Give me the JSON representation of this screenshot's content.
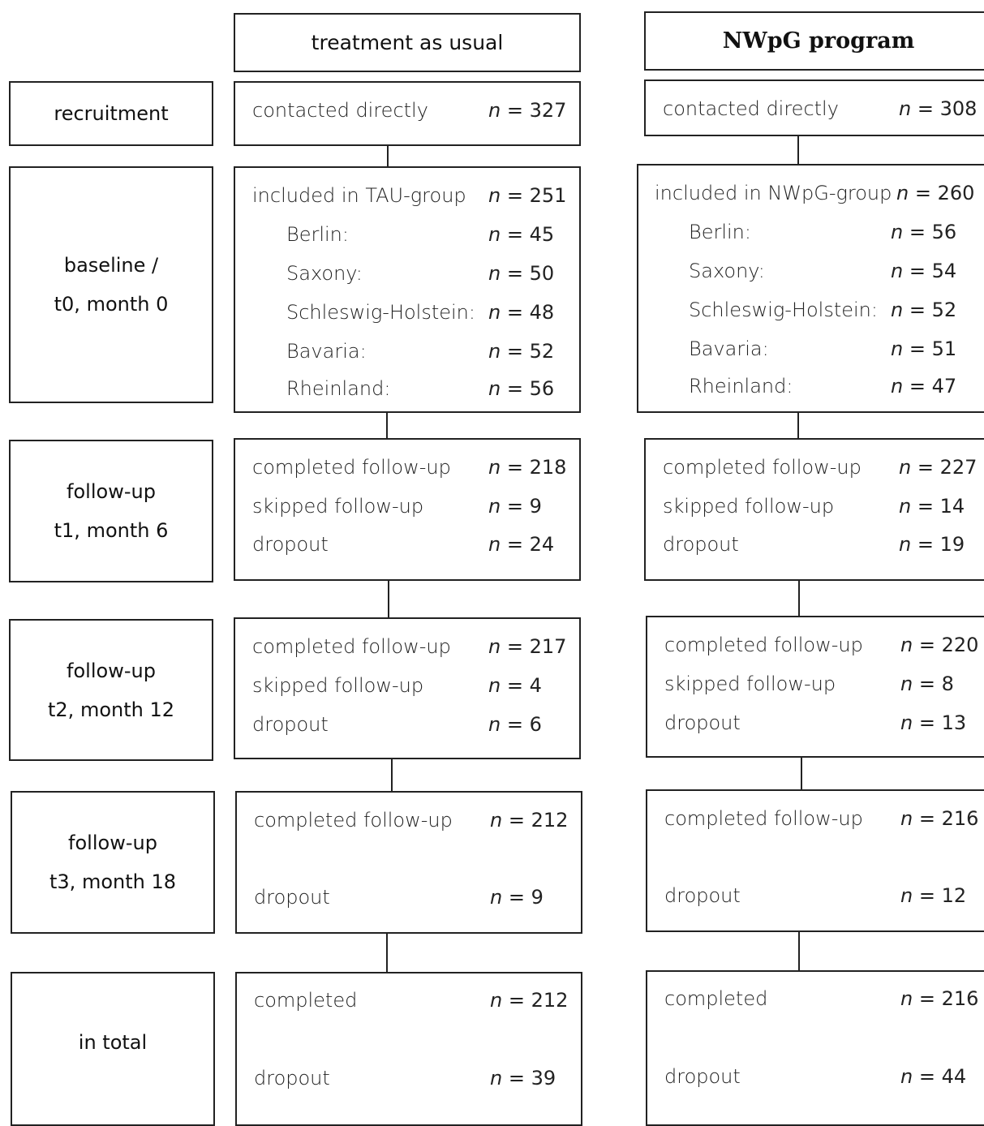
{
  "headers": {
    "tau": "treatment as usual",
    "nwpg": "NWpG program"
  },
  "stages": {
    "recruitment": "recruitment",
    "baseline": [
      "baseline /",
      "t0, month 0"
    ],
    "t1": [
      "follow-up",
      "t1, month 6"
    ],
    "t2": [
      "follow-up",
      "t2, month 12"
    ],
    "t3": [
      "follow-up",
      "t3, month 18"
    ],
    "total": "in total"
  },
  "n_prefix": "n",
  "tau": {
    "recruitment": [
      {
        "label": "contacted directly",
        "n": "= 327"
      }
    ],
    "baseline": [
      {
        "label": "included in TAU-group",
        "n": "= 251"
      },
      {
        "label": "Berlin:",
        "n": "= 45"
      },
      {
        "label": "Saxony:",
        "n": "= 50"
      },
      {
        "label": "Schleswig-Holstein:",
        "n": "= 48"
      },
      {
        "label": "Bavaria:",
        "n": "= 52"
      },
      {
        "label": "Rheinland:",
        "n": "= 56"
      }
    ],
    "t1": [
      {
        "label": "completed follow-up",
        "n": "= 218"
      },
      {
        "label": "skipped follow-up",
        "n": "= 9"
      },
      {
        "label": "dropout",
        "n": "= 24"
      }
    ],
    "t2": [
      {
        "label": "completed follow-up",
        "n": "= 217"
      },
      {
        "label": "skipped follow-up",
        "n": "= 4"
      },
      {
        "label": "dropout",
        "n": "= 6"
      }
    ],
    "t3": [
      {
        "label": "completed follow-up",
        "n": "= 212"
      },
      {
        "label": "dropout",
        "n": "= 9"
      }
    ],
    "total": [
      {
        "label": "completed",
        "n": "= 212"
      },
      {
        "label": "dropout",
        "n": "= 39"
      }
    ]
  },
  "nwpg": {
    "recruitment": [
      {
        "label": "contacted directly",
        "n": "= 308"
      }
    ],
    "baseline": [
      {
        "label": "included in NWpG-group",
        "n": "= 260"
      },
      {
        "label": "Berlin:",
        "n": "= 56"
      },
      {
        "label": "Saxony:",
        "n": "= 54"
      },
      {
        "label": "Schleswig-Holstein:",
        "n": "= 52"
      },
      {
        "label": "Bavaria:",
        "n": "= 51"
      },
      {
        "label": "Rheinland:",
        "n": "= 47"
      }
    ],
    "t1": [
      {
        "label": "completed follow-up",
        "n": "= 227"
      },
      {
        "label": "skipped follow-up",
        "n": "= 14"
      },
      {
        "label": "dropout",
        "n": "= 19"
      }
    ],
    "t2": [
      {
        "label": "completed follow-up",
        "n": "= 220"
      },
      {
        "label": "skipped follow-up",
        "n": "= 8"
      },
      {
        "label": "dropout",
        "n": "= 13"
      }
    ],
    "t3": [
      {
        "label": "completed follow-up",
        "n": "= 216"
      },
      {
        "label": "dropout",
        "n": "= 12"
      }
    ],
    "total": [
      {
        "label": "completed",
        "n": "= 216"
      },
      {
        "label": "dropout",
        "n": "= 44"
      }
    ]
  }
}
